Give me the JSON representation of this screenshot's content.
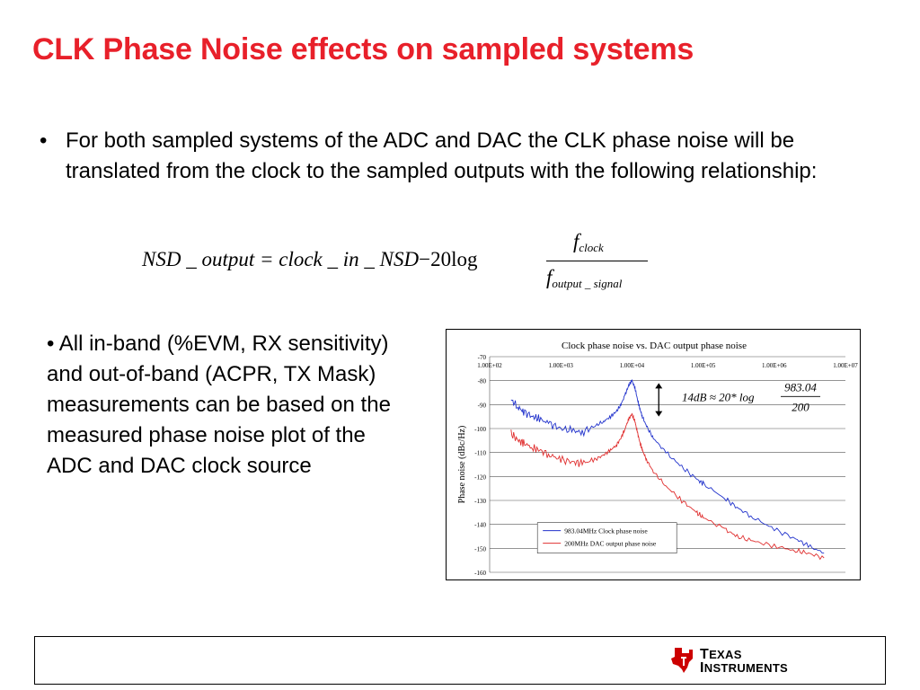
{
  "slide": {
    "title": "CLK Phase Noise effects on sampled systems",
    "bullet1": "For both sampled systems of the ADC and DAC the CLK phase noise will be translated from the clock to the sampled outputs with the following relationship:",
    "bullet_char": "•",
    "formula": {
      "lhs_italic": "NSD _ output = clock _ in _ NSD",
      "minus": "−",
      "coef": "20",
      "log": "log",
      "num_var": "f",
      "num_sub": "clock",
      "den_var": "f",
      "den_sub": "output _ signal"
    },
    "bullet2": "• All in-band (%EVM, RX sensitivity) and out-of-band (ACPR, TX Mask) measurements can be based on the measured phase noise plot of the ADC and DAC clock source"
  },
  "chart_data": {
    "type": "line",
    "title": "Clock phase noise vs. DAC output phase noise",
    "xlabel": "",
    "ylabel": "Phase noise (dBc/Hz)",
    "x_scale": "log",
    "x_ticks": [
      "1.00E+02",
      "1.00E+03",
      "1.00E+04",
      "1.00E+05",
      "1.00E+06",
      "1.00E+07"
    ],
    "x_tick_values": [
      100,
      1000,
      10000,
      100000,
      1000000,
      10000000
    ],
    "xlim": [
      100,
      10000000
    ],
    "y_ticks": [
      -70,
      -80,
      -90,
      -100,
      -110,
      -120,
      -130,
      -140,
      -150,
      -160
    ],
    "ylim": [
      -160,
      -70
    ],
    "grid": true,
    "legend_position": "bottom-center",
    "colors": {
      "clock": "#2233cc",
      "dac": "#e03030"
    },
    "annotation": {
      "lhs": "14dB ≈ 20* log",
      "numerator": "983.04",
      "denominator": "200"
    },
    "series": [
      {
        "name": "983.04MHz Clock phase noise",
        "x": [
          200,
          250,
          300,
          400,
          500,
          700,
          1000,
          1500,
          2000,
          3000,
          4000,
          5000,
          6000,
          7000,
          8000,
          9000,
          10000,
          11000,
          12000,
          13000,
          14000,
          16000,
          20000,
          30000,
          50000,
          80000,
          100000,
          200000,
          300000,
          500000,
          1000000,
          2000000,
          3000000,
          5000000
        ],
        "y": [
          -88,
          -91,
          -93,
          -95,
          -96,
          -98,
          -100,
          -101,
          -101.5,
          -99,
          -97,
          -95,
          -93,
          -90,
          -86,
          -82,
          -80,
          -83,
          -88,
          -92,
          -95,
          -99,
          -104,
          -110,
          -116,
          -121,
          -123,
          -129,
          -133,
          -137,
          -142,
          -146,
          -149,
          -152
        ]
      },
      {
        "name": "200MHz DAC output phase noise",
        "x": [
          200,
          250,
          300,
          400,
          500,
          700,
          1000,
          1500,
          2000,
          3000,
          4000,
          5000,
          6000,
          7000,
          8000,
          9000,
          10000,
          11000,
          12000,
          13000,
          14000,
          16000,
          20000,
          30000,
          50000,
          80000,
          100000,
          200000,
          300000,
          500000,
          1000000,
          2000000,
          3000000,
          5000000
        ],
        "y": [
          -102,
          -105,
          -106,
          -108,
          -109,
          -111,
          -113,
          -114,
          -114.5,
          -113,
          -111,
          -109,
          -107,
          -104,
          -100,
          -96,
          -94,
          -97,
          -102,
          -106,
          -109,
          -113,
          -118,
          -124,
          -130,
          -135,
          -137,
          -142,
          -145,
          -147,
          -149,
          -151,
          -152,
          -154
        ]
      }
    ]
  },
  "footer": {
    "logo": {
      "icon": "ti-state-icon",
      "color": "#cc0000",
      "line1": "EXAS",
      "line1_initial": "T",
      "line2": "NSTRUMENTS",
      "line2_initial": "I"
    }
  }
}
